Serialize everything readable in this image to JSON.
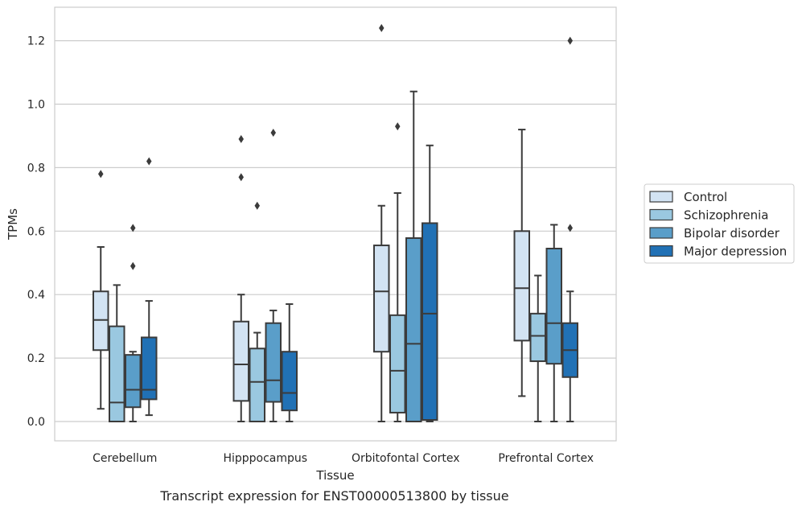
{
  "chart_data": {
    "type": "box",
    "xlabel": "Tissue",
    "ylabel": "TPMs",
    "caption": "Transcript expression for ENST00000513800 by tissue",
    "ylim": [
      -0.06,
      1.3
    ],
    "yticks": [
      0.0,
      0.2,
      0.4,
      0.6,
      0.8,
      1.0,
      1.2
    ],
    "ytick_labels": [
      "0.0",
      "0.2",
      "0.4",
      "0.6",
      "0.8",
      "1.0",
      "1.2"
    ],
    "grid": "horizontal",
    "legend_position": "right",
    "categories": [
      "Cerebellum",
      "Hipppocampus",
      "Orbitofontal Cortex",
      "Prefrontal Cortex"
    ],
    "series": [
      {
        "name": "Control",
        "color": "#d2e3f3",
        "boxes": [
          {
            "whislo": 0.04,
            "q1": 0.225,
            "med": 0.32,
            "q3": 0.41,
            "whishi": 0.55,
            "fliers": [
              0.78
            ]
          },
          {
            "whislo": 0.0,
            "q1": 0.065,
            "med": 0.18,
            "q3": 0.315,
            "whishi": 0.4,
            "fliers": [
              0.77,
              0.89
            ]
          },
          {
            "whislo": 0.0,
            "q1": 0.22,
            "med": 0.41,
            "q3": 0.555,
            "whishi": 0.68,
            "fliers": [
              1.24
            ]
          },
          {
            "whislo": 0.08,
            "q1": 0.255,
            "med": 0.42,
            "q3": 0.6,
            "whishi": 0.92,
            "fliers": []
          }
        ]
      },
      {
        "name": "Schizophrenia",
        "color": "#9ac8e0",
        "boxes": [
          {
            "whislo": 0.0,
            "q1": 0.0,
            "med": 0.06,
            "q3": 0.3,
            "whishi": 0.43,
            "fliers": []
          },
          {
            "whislo": 0.0,
            "q1": 0.0,
            "med": 0.125,
            "q3": 0.23,
            "whishi": 0.28,
            "fliers": [
              0.68
            ]
          },
          {
            "whislo": 0.0,
            "q1": 0.028,
            "med": 0.16,
            "q3": 0.335,
            "whishi": 0.72,
            "fliers": [
              0.93
            ]
          },
          {
            "whislo": 0.0,
            "q1": 0.19,
            "med": 0.27,
            "q3": 0.34,
            "whishi": 0.46,
            "fliers": []
          }
        ]
      },
      {
        "name": "Bipolar disorder",
        "color": "#5a9ec9",
        "boxes": [
          {
            "whislo": 0.0,
            "q1": 0.045,
            "med": 0.1,
            "q3": 0.21,
            "whishi": 0.22,
            "fliers": [
              0.49,
              0.61
            ]
          },
          {
            "whislo": 0.0,
            "q1": 0.062,
            "med": 0.13,
            "q3": 0.31,
            "whishi": 0.35,
            "fliers": [
              0.91
            ]
          },
          {
            "whislo": 0.0,
            "q1": 0.0,
            "med": 0.245,
            "q3": 0.578,
            "whishi": 1.04,
            "fliers": []
          },
          {
            "whislo": 0.0,
            "q1": 0.182,
            "med": 0.31,
            "q3": 0.545,
            "whishi": 0.62,
            "fliers": []
          }
        ]
      },
      {
        "name": "Major depression",
        "color": "#2171b5",
        "boxes": [
          {
            "whislo": 0.02,
            "q1": 0.07,
            "med": 0.1,
            "q3": 0.265,
            "whishi": 0.38,
            "fliers": [
              0.82
            ]
          },
          {
            "whislo": 0.0,
            "q1": 0.035,
            "med": 0.09,
            "q3": 0.22,
            "whishi": 0.37,
            "fliers": []
          },
          {
            "whislo": 0.0,
            "q1": 0.005,
            "med": 0.34,
            "q3": 0.625,
            "whishi": 0.87,
            "fliers": []
          },
          {
            "whislo": 0.0,
            "q1": 0.14,
            "med": 0.225,
            "q3": 0.31,
            "whishi": 0.41,
            "fliers": [
              0.61,
              1.2
            ]
          }
        ]
      }
    ]
  }
}
